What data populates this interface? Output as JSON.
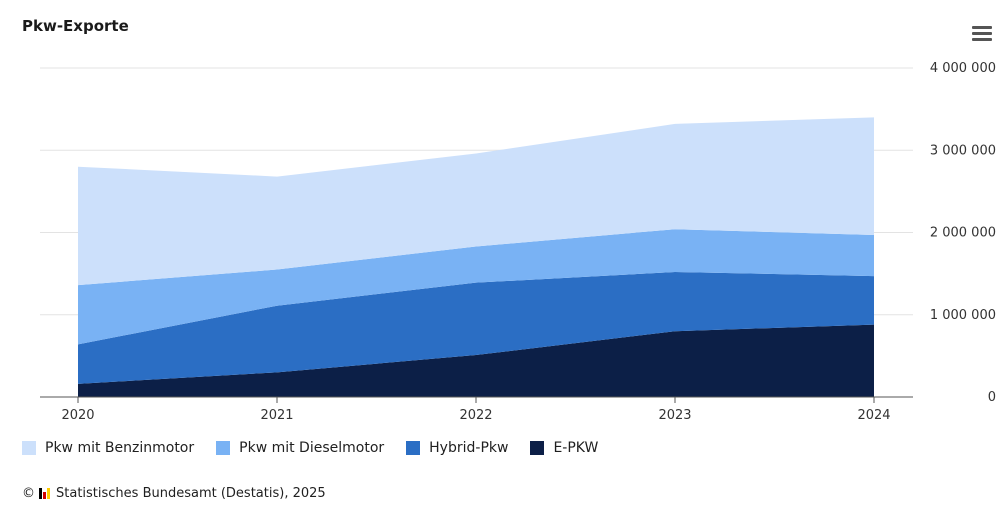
{
  "header": {
    "title": "Pkw-Exporte",
    "menu_icon": "hamburger-menu-icon"
  },
  "chart_data": {
    "type": "area",
    "stacked": true,
    "title": "Pkw-Exporte",
    "x": [
      "2020",
      "2021",
      "2022",
      "2023",
      "2024"
    ],
    "ylim": [
      0,
      4000000
    ],
    "yticks": [
      "0",
      "1 000 000",
      "2 000 000",
      "3 000 000",
      "4 000 000"
    ],
    "ytick_values": [
      0,
      1000000,
      2000000,
      3000000,
      4000000
    ],
    "y_axis_position": "right",
    "grid": true,
    "legend_position": "bottom-left",
    "series": [
      {
        "name": "E-PKW",
        "color": "#0c1f47",
        "values": [
          160000,
          300000,
          510000,
          800000,
          880000
        ]
      },
      {
        "name": "Hybrid-Pkw",
        "color": "#2b6ec4",
        "values": [
          480000,
          810000,
          880000,
          720000,
          590000
        ]
      },
      {
        "name": "Pkw mit Dieselmotor",
        "color": "#79b2f4",
        "values": [
          720000,
          440000,
          440000,
          520000,
          500000
        ]
      },
      {
        "name": "Pkw mit Benzinmotor",
        "color": "#cce0fb",
        "values": [
          1440000,
          1130000,
          1130000,
          1280000,
          1430000
        ]
      }
    ]
  },
  "legend": {
    "items": [
      {
        "label": "Pkw mit Benzinmotor",
        "color": "#cce0fb"
      },
      {
        "label": "Pkw mit Dieselmotor",
        "color": "#79b2f4"
      },
      {
        "label": "Hybrid-Pkw",
        "color": "#2b6ec4"
      },
      {
        "label": "E-PKW",
        "color": "#0c1f47"
      }
    ]
  },
  "footer": {
    "copyright_symbol": "©",
    "source": "Statistisches Bundesamt (Destatis), 2025",
    "logo_colors": [
      "#000000",
      "#d00000",
      "#ffcc00"
    ]
  }
}
